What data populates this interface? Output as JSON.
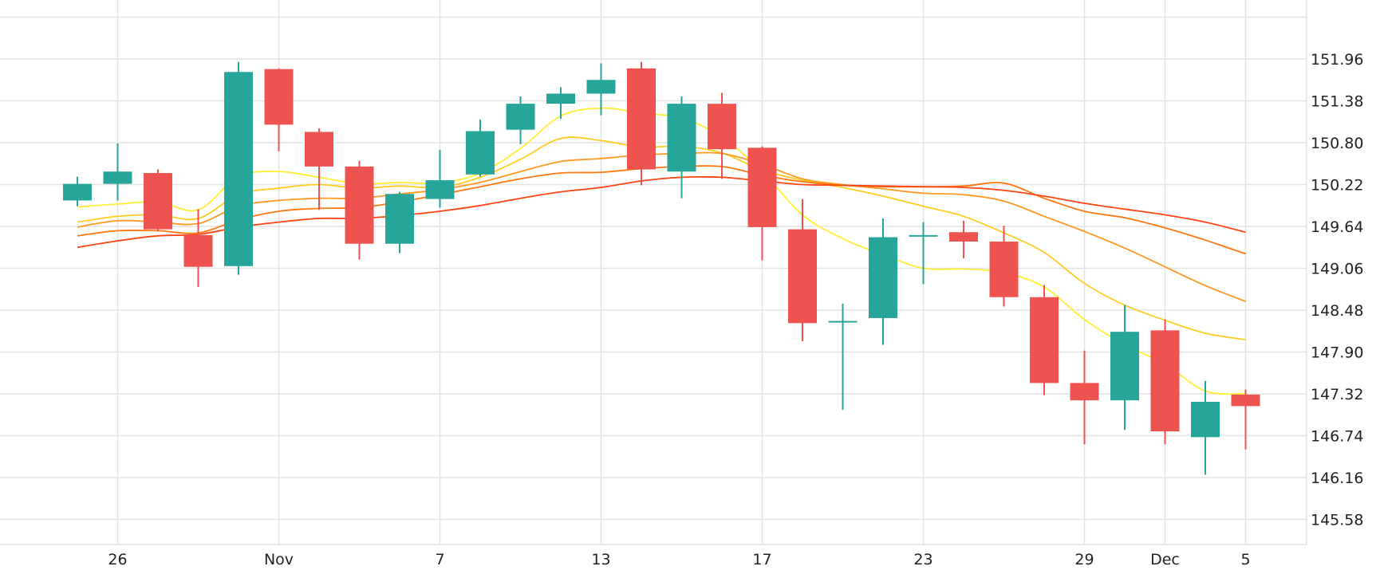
{
  "chart_data": {
    "type": "candlestick",
    "x_tick_labels": [
      {
        "label": "26",
        "index": 1
      },
      {
        "label": "Nov",
        "index": 5
      },
      {
        "label": "7",
        "index": 9
      },
      {
        "label": "13",
        "index": 13
      },
      {
        "label": "17",
        "index": 17
      },
      {
        "label": "23",
        "index": 21
      },
      {
        "label": "29",
        "index": 25
      },
      {
        "label": "Dec",
        "index": 27
      },
      {
        "label": "5",
        "index": 29
      }
    ],
    "y_ticks": [
      145.58,
      146.16,
      146.74,
      147.32,
      147.9,
      148.48,
      149.06,
      149.64,
      150.22,
      150.8,
      151.38,
      151.96
    ],
    "y_tick_labels": [
      "145.58",
      "146.16",
      "146.74",
      "147.32",
      "147.90",
      "148.48",
      "149.06",
      "149.64",
      "150.22",
      "150.80",
      "151.38",
      "151.96"
    ],
    "ylim": [
      145.0,
      152.4
    ],
    "xlim": [
      -1.0,
      30.65
    ],
    "grid": true,
    "colors": {
      "up": "#26a69a",
      "down": "#ef5350",
      "grid": "#e3e3e3",
      "text": "#222222"
    },
    "candles": [
      {
        "o": 150.0,
        "h": 150.33,
        "l": 149.92,
        "c": 150.23
      },
      {
        "o": 150.23,
        "h": 150.79,
        "l": 150.0,
        "c": 150.4
      },
      {
        "o": 150.38,
        "h": 150.43,
        "l": 149.57,
        "c": 149.6
      },
      {
        "o": 149.52,
        "h": 149.88,
        "l": 148.8,
        "c": 149.08
      },
      {
        "o": 149.09,
        "h": 151.92,
        "l": 148.97,
        "c": 151.78
      },
      {
        "o": 151.82,
        "h": 151.83,
        "l": 150.68,
        "c": 151.05
      },
      {
        "o": 150.95,
        "h": 151.0,
        "l": 149.87,
        "c": 150.47
      },
      {
        "o": 150.47,
        "h": 150.55,
        "l": 149.18,
        "c": 149.4
      },
      {
        "o": 149.4,
        "h": 150.12,
        "l": 149.27,
        "c": 150.09
      },
      {
        "o": 150.02,
        "h": 150.7,
        "l": 149.9,
        "c": 150.28
      },
      {
        "o": 150.36,
        "h": 151.12,
        "l": 150.33,
        "c": 150.96
      },
      {
        "o": 150.98,
        "h": 151.44,
        "l": 150.78,
        "c": 151.34
      },
      {
        "o": 151.34,
        "h": 151.57,
        "l": 151.13,
        "c": 151.48
      },
      {
        "o": 151.48,
        "h": 151.9,
        "l": 151.18,
        "c": 151.67
      },
      {
        "o": 151.83,
        "h": 151.92,
        "l": 150.21,
        "c": 150.43
      },
      {
        "o": 150.4,
        "h": 151.44,
        "l": 150.03,
        "c": 151.34
      },
      {
        "o": 151.34,
        "h": 151.49,
        "l": 150.3,
        "c": 150.71
      },
      {
        "o": 150.73,
        "h": 150.75,
        "l": 149.17,
        "c": 149.63
      },
      {
        "o": 149.6,
        "h": 150.02,
        "l": 148.05,
        "c": 148.3
      },
      {
        "o": 148.33,
        "h": 148.57,
        "l": 147.1,
        "c": 148.33
      },
      {
        "o": 148.37,
        "h": 149.75,
        "l": 148.0,
        "c": 149.49
      },
      {
        "o": 149.52,
        "h": 149.7,
        "l": 148.84,
        "c": 149.52
      },
      {
        "o": 149.56,
        "h": 149.72,
        "l": 149.2,
        "c": 149.43
      },
      {
        "o": 149.43,
        "h": 149.65,
        "l": 148.53,
        "c": 148.66
      },
      {
        "o": 148.66,
        "h": 148.83,
        "l": 147.3,
        "c": 147.47
      },
      {
        "o": 147.47,
        "h": 147.92,
        "l": 146.62,
        "c": 147.23
      },
      {
        "o": 147.23,
        "h": 148.55,
        "l": 146.82,
        "c": 148.18
      },
      {
        "o": 148.2,
        "h": 148.35,
        "l": 146.62,
        "c": 146.8
      },
      {
        "o": 146.72,
        "h": 147.5,
        "l": 146.2,
        "c": 147.21
      },
      {
        "o": 147.31,
        "h": 147.38,
        "l": 146.55,
        "c": 147.15
      }
    ],
    "moving_averages": [
      {
        "color": "#ffee33",
        "values": [
          149.91,
          149.95,
          149.98,
          149.87,
          150.33,
          150.4,
          150.32,
          150.23,
          150.25,
          150.24,
          150.38,
          150.72,
          151.17,
          151.28,
          151.21,
          151.14,
          150.88,
          150.4,
          149.8,
          149.47,
          149.25,
          149.06,
          149.05,
          149.0,
          148.8,
          148.35,
          148.0,
          147.73,
          147.36,
          147.32
        ]
      },
      {
        "color": "#ffcc22",
        "values": [
          149.7,
          149.78,
          149.8,
          149.75,
          150.08,
          150.17,
          150.22,
          150.17,
          150.2,
          150.18,
          150.32,
          150.57,
          150.86,
          150.83,
          150.74,
          150.75,
          150.66,
          150.42,
          150.28,
          150.18,
          150.06,
          149.92,
          149.78,
          149.55,
          149.28,
          148.85,
          148.55,
          148.34,
          148.16,
          148.07
        ]
      },
      {
        "color": "#ff9922",
        "values": [
          149.63,
          149.72,
          149.7,
          149.68,
          149.92,
          150.0,
          150.03,
          150.03,
          150.09,
          150.15,
          150.25,
          150.4,
          150.54,
          150.58,
          150.63,
          150.65,
          150.65,
          150.5,
          150.3,
          150.22,
          150.16,
          150.1,
          150.08,
          149.99,
          149.78,
          149.57,
          149.34,
          149.08,
          148.82,
          148.6
        ]
      },
      {
        "color": "#ff7711",
        "values": [
          149.51,
          149.58,
          149.58,
          149.55,
          149.73,
          149.85,
          149.89,
          149.9,
          149.98,
          150.08,
          150.19,
          150.3,
          150.38,
          150.39,
          150.44,
          150.47,
          150.47,
          150.35,
          150.26,
          150.21,
          150.19,
          150.19,
          150.2,
          150.24,
          150.03,
          149.85,
          149.76,
          149.62,
          149.45,
          149.26
        ]
      },
      {
        "color": "#ff4411",
        "values": [
          149.35,
          149.44,
          149.51,
          149.53,
          149.63,
          149.7,
          149.75,
          149.75,
          149.79,
          149.85,
          149.93,
          150.03,
          150.12,
          150.18,
          150.27,
          150.32,
          150.32,
          150.27,
          150.22,
          150.21,
          150.2,
          150.19,
          150.18,
          150.14,
          150.06,
          149.96,
          149.88,
          149.8,
          149.7,
          149.56
        ]
      }
    ]
  }
}
